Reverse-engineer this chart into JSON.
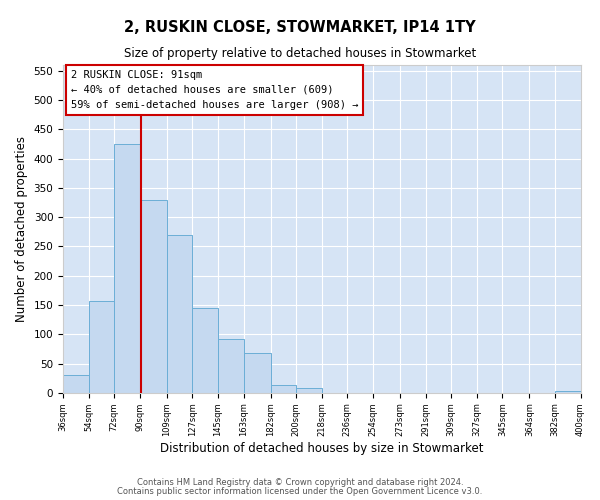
{
  "title": "2, RUSKIN CLOSE, STOWMARKET, IP14 1TY",
  "subtitle": "Size of property relative to detached houses in Stowmarket",
  "xlabel": "Distribution of detached houses by size in Stowmarket",
  "ylabel": "Number of detached properties",
  "bin_edges": [
    36,
    54,
    72,
    90,
    109,
    127,
    145,
    163,
    182,
    200,
    218,
    236,
    254,
    273,
    291,
    309,
    327,
    345,
    364,
    382,
    400
  ],
  "bar_heights": [
    30,
    157,
    425,
    330,
    270,
    145,
    92,
    68,
    13,
    9,
    0,
    0,
    0,
    0,
    0,
    0,
    0,
    0,
    0,
    3
  ],
  "bar_color": "#c5d9f0",
  "bar_edgecolor": "#6baed6",
  "property_line_x": 91,
  "ylim": [
    0,
    560
  ],
  "yticks": [
    0,
    50,
    100,
    150,
    200,
    250,
    300,
    350,
    400,
    450,
    500,
    550
  ],
  "annotation_box_text": "2 RUSKIN CLOSE: 91sqm\n← 40% of detached houses are smaller (609)\n59% of semi-detached houses are larger (908) →",
  "annotation_box_color": "#cc0000",
  "footer_line1": "Contains HM Land Registry data © Crown copyright and database right 2024.",
  "footer_line2": "Contains public sector information licensed under the Open Government Licence v3.0.",
  "tick_labels": [
    "36sqm",
    "54sqm",
    "72sqm",
    "90sqm",
    "109sqm",
    "127sqm",
    "145sqm",
    "163sqm",
    "182sqm",
    "200sqm",
    "218sqm",
    "236sqm",
    "254sqm",
    "273sqm",
    "291sqm",
    "309sqm",
    "327sqm",
    "345sqm",
    "364sqm",
    "382sqm",
    "400sqm"
  ],
  "figure_bg": "#ffffff",
  "plot_bg_color": "#d6e4f5",
  "title_fontsize": 10.5,
  "subtitle_fontsize": 8.5
}
